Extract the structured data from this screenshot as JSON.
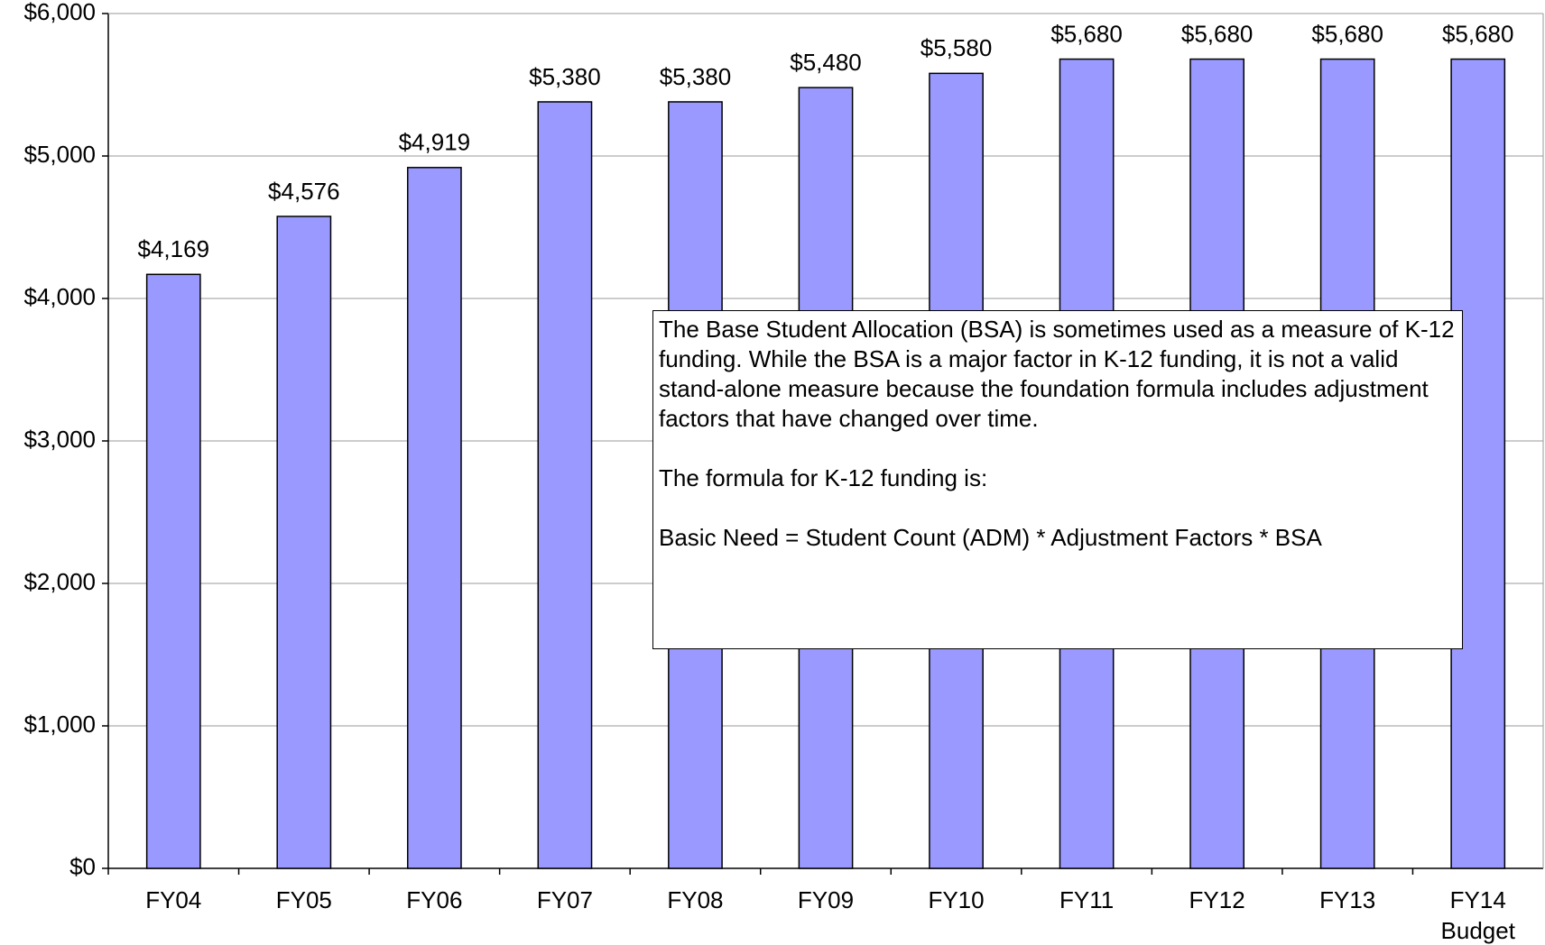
{
  "chart_data": {
    "type": "bar",
    "categories": [
      "FY04",
      "FY05",
      "FY06",
      "FY07",
      "FY08",
      "FY09",
      "FY10",
      "FY11",
      "FY12",
      "FY13",
      "FY14 Budget"
    ],
    "values": [
      4169,
      4576,
      4919,
      5380,
      5380,
      5480,
      5580,
      5680,
      5680,
      5680,
      5680
    ],
    "value_labels": [
      "$4,169",
      "$4,576",
      "$4,919",
      "$5,380",
      "$5,380",
      "$5,480",
      "$5,580",
      "$5,680",
      "$5,680",
      "$5,680",
      "$5,680"
    ],
    "color": "#9999ff",
    "ylim": [
      0,
      6000
    ],
    "yticks": [
      {
        "value": 0,
        "label": "$0"
      },
      {
        "value": 1000,
        "label": "$1,000"
      },
      {
        "value": 2000,
        "label": "$2,000"
      },
      {
        "value": 3000,
        "label": "$3,000"
      },
      {
        "value": 4000,
        "label": "$4,000"
      },
      {
        "value": 5000,
        "label": "$5,000"
      },
      {
        "value": 6000,
        "label": "$6,000"
      }
    ],
    "grid": true,
    "annotation": [
      "The Base Student Allocation (BSA) is sometimes used as a measure of K-12 funding. While the BSA is a major factor in K-12 funding, it is not a valid stand-alone measure because the foundation formula includes adjustment factors that have changed over time.",
      "The formula for K-12 funding is:",
      "Basic Need = Student Count (ADM) * Adjustment Factors * BSA"
    ]
  }
}
